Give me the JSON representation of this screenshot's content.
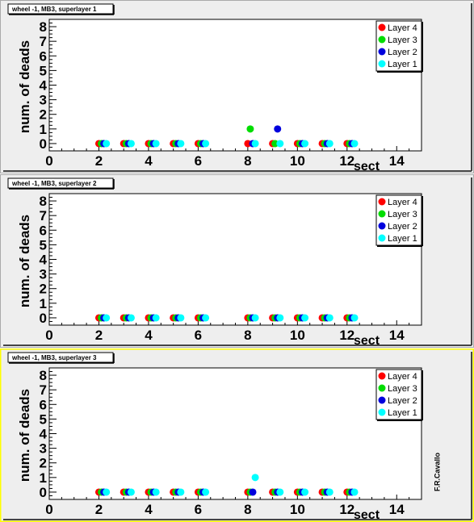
{
  "colors": {
    "pad_bg": "#eeeeee",
    "pad_border_selected": "#ffff00",
    "frame_bg": "#ffffff",
    "layer4": "#ff0000",
    "layer3": "#00dd00",
    "layer2": "#0000dd",
    "layer1": "#00ffff"
  },
  "signature": "F.R.Cavallo",
  "chart_data": [
    {
      "type": "scatter",
      "title": "wheel -1, MB3, superlayer 1",
      "xlabel": "sect",
      "ylabel": "num. of deads",
      "xlim": [
        0,
        15
      ],
      "ylim": [
        -0.5,
        8.5
      ],
      "x_ticks": [
        "0",
        "2",
        "4",
        "6",
        "8",
        "10",
        "12",
        "14"
      ],
      "y_ticks": [
        "0",
        "1",
        "2",
        "3",
        "4",
        "5",
        "6",
        "7",
        "8"
      ],
      "legend_position": "top-right",
      "selected": false,
      "series": [
        {
          "name": "Layer 4",
          "color": "#ff0000",
          "x": [
            2,
            3,
            4,
            5,
            6,
            8,
            9,
            10,
            11,
            12
          ],
          "y": [
            0,
            0,
            0,
            0,
            0,
            0,
            0,
            0,
            0,
            0
          ]
        },
        {
          "name": "Layer 3",
          "color": "#00dd00",
          "x": [
            2.1,
            3.1,
            4.1,
            5.1,
            6.1,
            8.1,
            9.1,
            10.1,
            11.1,
            12.1
          ],
          "y": [
            0,
            0,
            0,
            0,
            0,
            1,
            0,
            0,
            0,
            0
          ]
        },
        {
          "name": "Layer 2",
          "color": "#0000dd",
          "x": [
            2.2,
            3.2,
            4.2,
            5.2,
            6.2,
            8.2,
            9.2,
            10.2,
            11.2,
            12.2
          ],
          "y": [
            0,
            0,
            0,
            0,
            0,
            0,
            1,
            0,
            0,
            0
          ]
        },
        {
          "name": "Layer 1",
          "color": "#00ffff",
          "x": [
            2.3,
            3.3,
            4.3,
            5.3,
            6.3,
            8.3,
            9.3,
            10.3,
            11.3,
            12.3
          ],
          "y": [
            0,
            0,
            0,
            0,
            0,
            0,
            0,
            0,
            0,
            0
          ]
        }
      ]
    },
    {
      "type": "scatter",
      "title": "wheel -1, MB3, superlayer 2",
      "xlabel": "sect",
      "ylabel": "num. of deads",
      "xlim": [
        0,
        15
      ],
      "ylim": [
        -0.5,
        8.5
      ],
      "x_ticks": [
        "0",
        "2",
        "4",
        "6",
        "8",
        "10",
        "12",
        "14"
      ],
      "y_ticks": [
        "0",
        "1",
        "2",
        "3",
        "4",
        "5",
        "6",
        "7",
        "8"
      ],
      "legend_position": "top-right",
      "selected": false,
      "series": [
        {
          "name": "Layer 4",
          "color": "#ff0000",
          "x": [
            2,
            3,
            4,
            5,
            6,
            8,
            9,
            10,
            11,
            12
          ],
          "y": [
            0,
            0,
            0,
            0,
            0,
            0,
            0,
            0,
            0,
            0
          ]
        },
        {
          "name": "Layer 3",
          "color": "#00dd00",
          "x": [
            2.1,
            3.1,
            4.1,
            5.1,
            6.1,
            8.1,
            9.1,
            10.1,
            11.1,
            12.1
          ],
          "y": [
            0,
            0,
            0,
            0,
            0,
            0,
            0,
            0,
            0,
            0
          ]
        },
        {
          "name": "Layer 2",
          "color": "#0000dd",
          "x": [
            2.2,
            3.2,
            4.2,
            5.2,
            6.2,
            8.2,
            9.2,
            10.2,
            11.2,
            12.2
          ],
          "y": [
            0,
            0,
            0,
            0,
            0,
            0,
            0,
            0,
            0,
            0
          ]
        },
        {
          "name": "Layer 1",
          "color": "#00ffff",
          "x": [
            2.3,
            3.3,
            4.3,
            5.3,
            6.3,
            8.3,
            9.3,
            10.3,
            11.3,
            12.3
          ],
          "y": [
            0,
            0,
            0,
            0,
            0,
            0,
            0,
            0,
            0,
            0
          ]
        }
      ]
    },
    {
      "type": "scatter",
      "title": "wheel -1, MB3, superlayer 3",
      "xlabel": "sect",
      "ylabel": "num. of deads",
      "xlim": [
        0,
        15
      ],
      "ylim": [
        -0.5,
        8.5
      ],
      "x_ticks": [
        "0",
        "2",
        "4",
        "6",
        "8",
        "10",
        "12",
        "14"
      ],
      "y_ticks": [
        "0",
        "1",
        "2",
        "3",
        "4",
        "5",
        "6",
        "7",
        "8"
      ],
      "legend_position": "top-right",
      "selected": true,
      "series": [
        {
          "name": "Layer 4",
          "color": "#ff0000",
          "x": [
            2,
            3,
            4,
            5,
            6,
            8,
            9,
            10,
            11,
            12
          ],
          "y": [
            0,
            0,
            0,
            0,
            0,
            0,
            0,
            0,
            0,
            0
          ]
        },
        {
          "name": "Layer 3",
          "color": "#00dd00",
          "x": [
            2.1,
            3.1,
            4.1,
            5.1,
            6.1,
            8.1,
            9.1,
            10.1,
            11.1,
            12.1
          ],
          "y": [
            0,
            0,
            0,
            0,
            0,
            0,
            0,
            0,
            0,
            0
          ]
        },
        {
          "name": "Layer 2",
          "color": "#0000dd",
          "x": [
            2.2,
            3.2,
            4.2,
            5.2,
            6.2,
            8.2,
            9.2,
            10.2,
            11.2,
            12.2
          ],
          "y": [
            0,
            0,
            0,
            0,
            0,
            0,
            0,
            0,
            0,
            0
          ]
        },
        {
          "name": "Layer 1",
          "color": "#00ffff",
          "x": [
            2.3,
            3.3,
            4.3,
            5.3,
            6.3,
            8.3,
            9.3,
            10.3,
            11.3,
            12.3
          ],
          "y": [
            0,
            0,
            0,
            0,
            0,
            1,
            0,
            0,
            0,
            0
          ]
        }
      ]
    }
  ]
}
